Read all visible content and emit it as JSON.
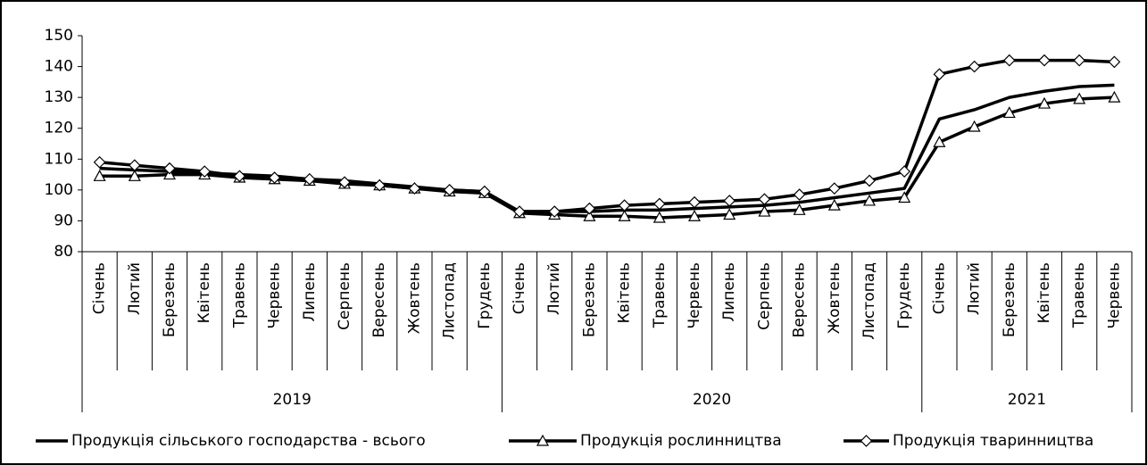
{
  "chart_data": {
    "type": "line",
    "categories": [
      "Січень",
      "Лютий",
      "Березень",
      "Квітень",
      "Травень",
      "Червень",
      "Липень",
      "Серпень",
      "Вересень",
      "Жовтень",
      "Листопад",
      "Грудень",
      "Січень",
      "Лютий",
      "Березень",
      "Квітень",
      "Травень",
      "Червень",
      "Липень",
      "Серпень",
      "Вересень",
      "Жовтень",
      "Листопад",
      "Грудень",
      "Січень",
      "Лютий",
      "Березень",
      "Квітень",
      "Травень",
      "Червень"
    ],
    "groups": [
      {
        "name": "2019",
        "span": 12
      },
      {
        "name": "2020",
        "span": 12
      },
      {
        "name": "2021",
        "span": 6
      }
    ],
    "series": [
      {
        "name": "Продукція сільського господарства - всього",
        "color": "#000000",
        "marker": "none",
        "values": [
          107,
          106.5,
          106,
          105.5,
          105,
          104.5,
          103.5,
          103,
          102,
          101,
          100,
          99.5,
          93,
          93,
          93,
          93.5,
          93.5,
          94,
          94.5,
          95,
          96,
          97.5,
          99,
          100.5,
          123,
          126,
          130,
          132,
          133.5,
          134
        ]
      },
      {
        "name": "Продукція рослинництва",
        "color": "#000000",
        "marker": "triangle",
        "values": [
          104.5,
          104.5,
          105,
          105,
          104,
          103.5,
          103,
          102,
          101.5,
          100.5,
          99.5,
          99,
          92.5,
          92,
          91.5,
          91.5,
          91,
          91.5,
          92,
          93,
          93.5,
          95,
          96.5,
          97.5,
          115.5,
          120.5,
          125,
          128,
          129.5,
          130
        ]
      },
      {
        "name": "Продукція тваринництва",
        "color": "#000000",
        "marker": "diamond",
        "values": [
          109,
          108,
          107,
          106,
          104.5,
          104,
          103.5,
          102.5,
          101.5,
          100.5,
          100,
          99.5,
          93,
          93,
          94,
          95,
          95.5,
          96,
          96.5,
          97,
          98.5,
          100.5,
          103,
          106,
          137.5,
          140,
          142,
          142,
          142,
          141.5
        ]
      }
    ],
    "ylim": [
      80,
      150
    ],
    "yticks": [
      80,
      90,
      100,
      110,
      120,
      130,
      140,
      150
    ],
    "grid": false,
    "legend": "bottom"
  }
}
